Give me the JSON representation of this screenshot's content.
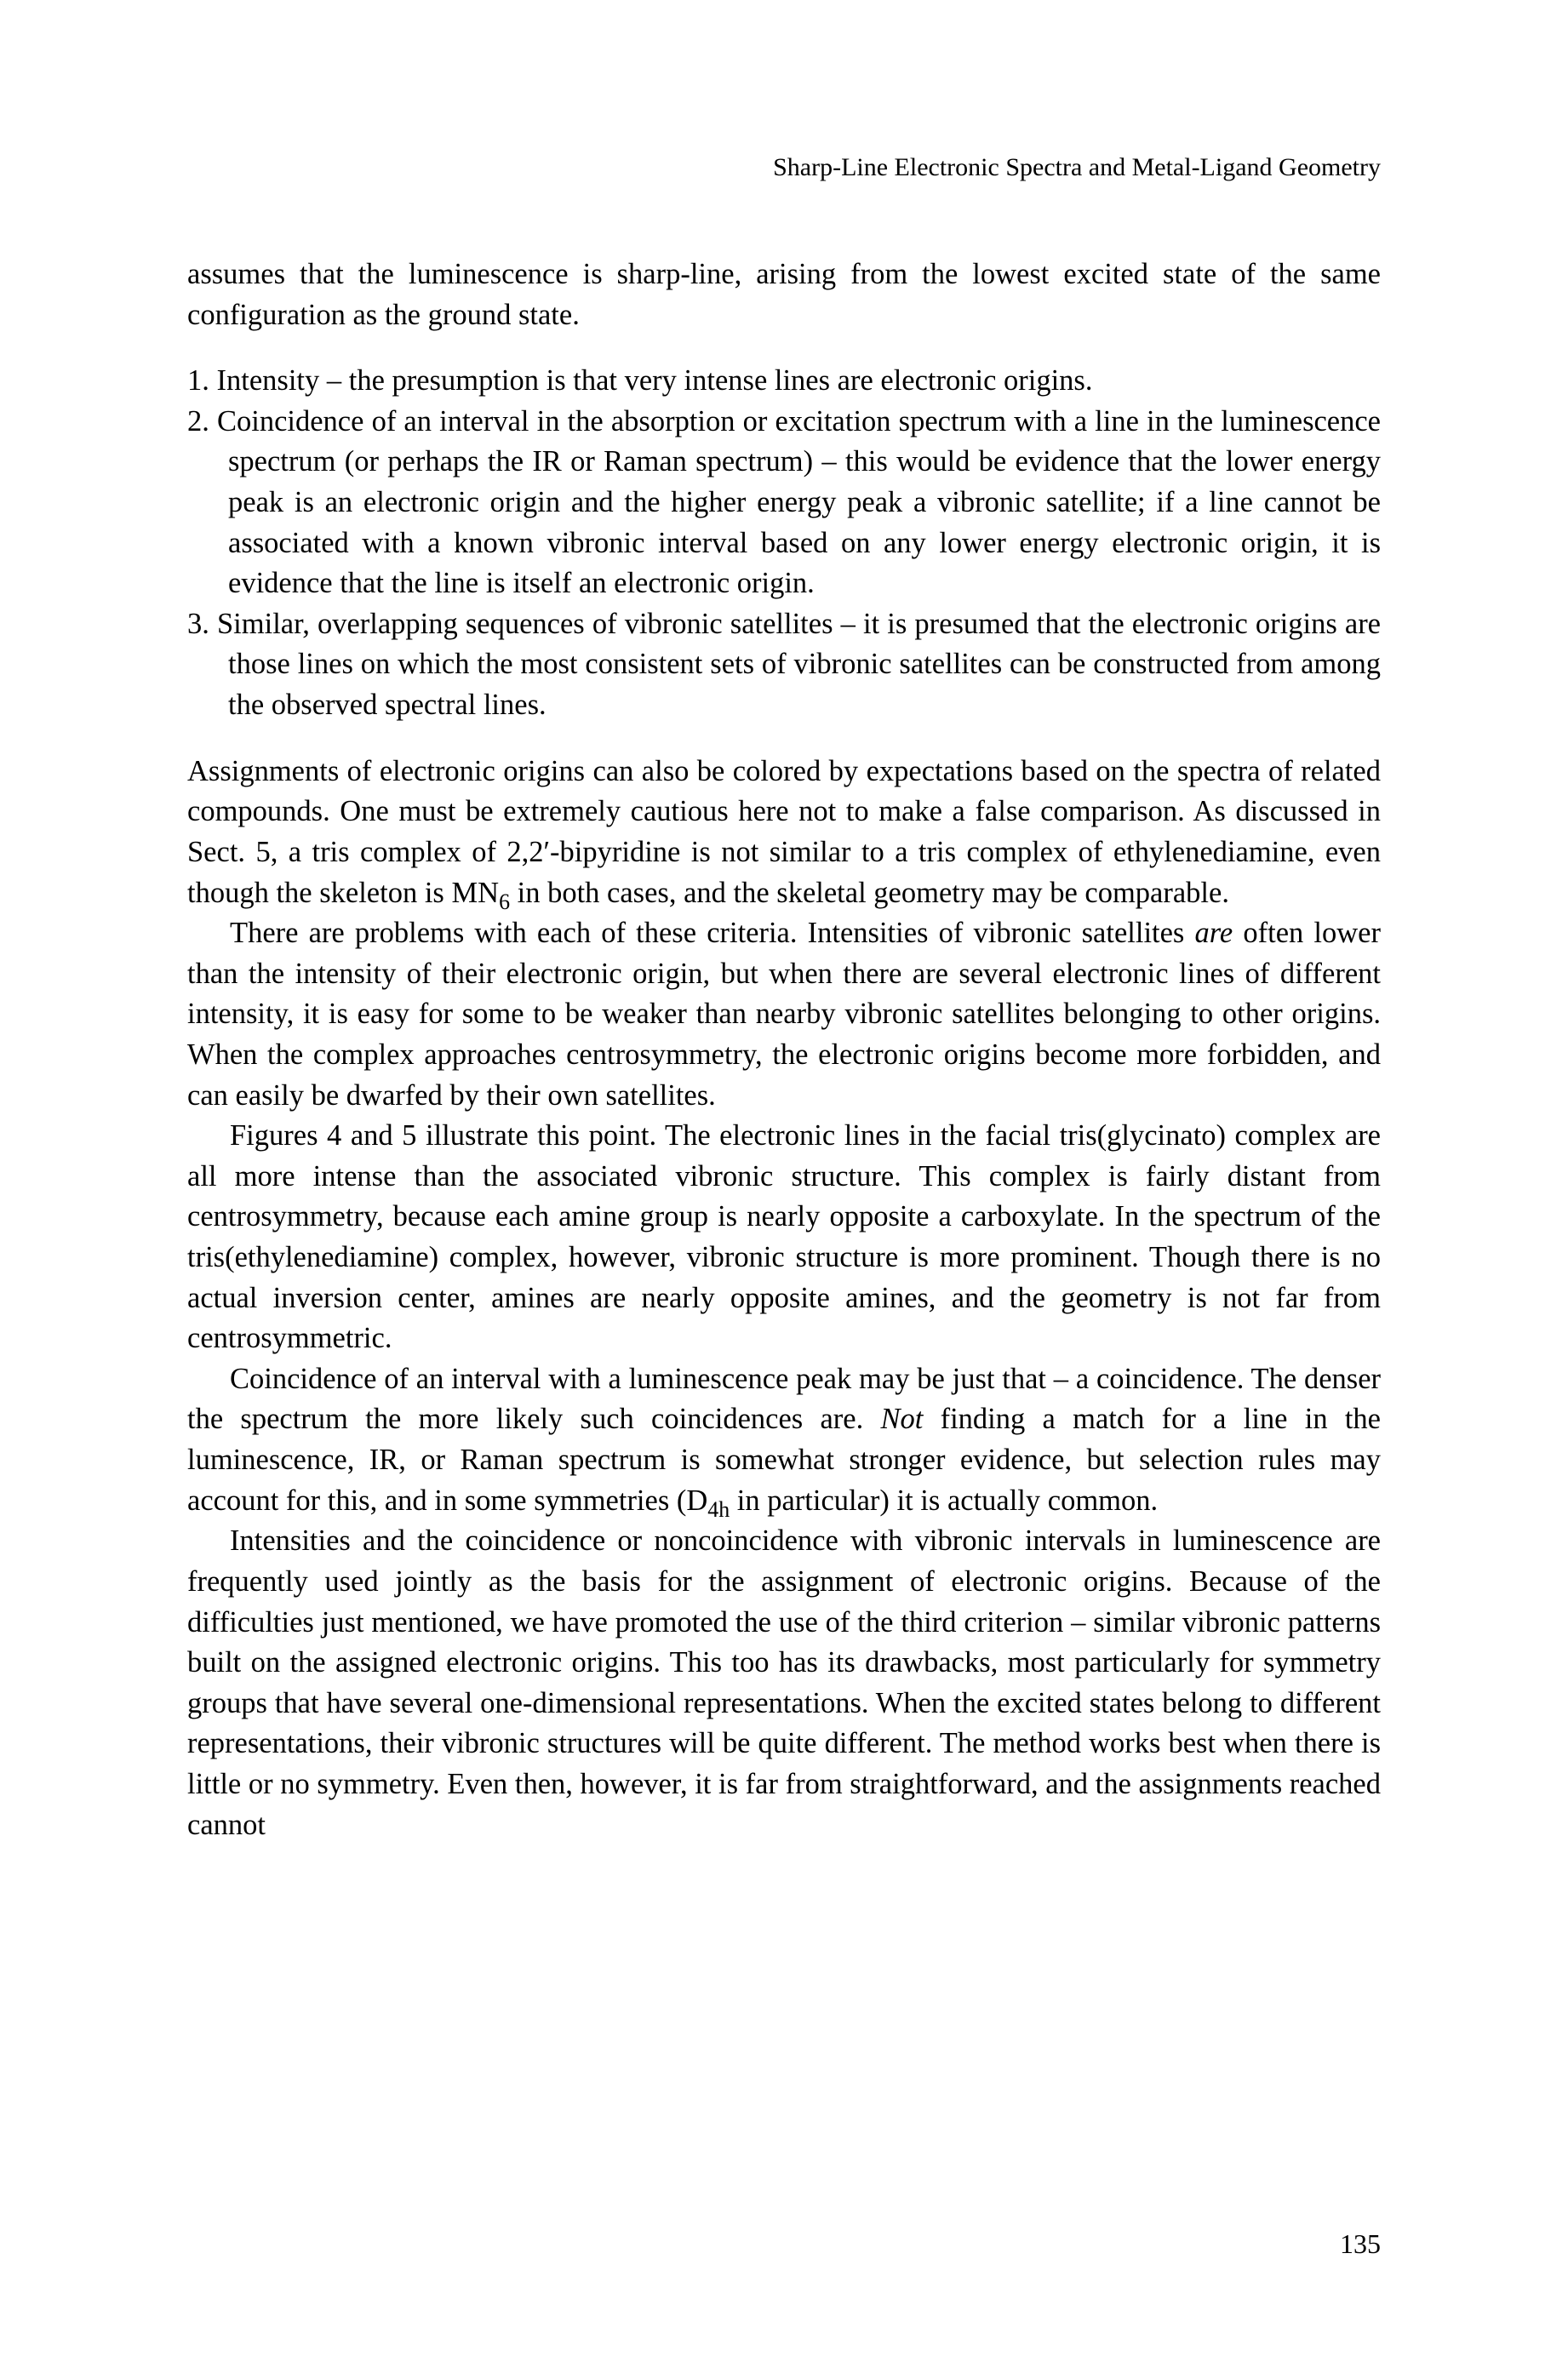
{
  "header": {
    "running_title": "Sharp-Line Electronic Spectra and Metal-Ligand Geometry"
  },
  "content": {
    "intro_para": "assumes that the luminescence is sharp-line, arising from the lowest excited state of the same configuration as the ground state.",
    "list": {
      "item1_num": "1.",
      "item1_text": " Intensity – the presumption is that very intense lines are electronic origins.",
      "item2_num": "2.",
      "item2_text": " Coincidence of an interval in the absorption or excitation spectrum with a line in the luminescence spectrum (or perhaps the IR or Raman spectrum) – this would be evidence that the lower energy peak is an electronic origin and the higher energy peak a vibronic satellite; if a line cannot be associated with a known vibronic interval based on any lower energy electronic origin, it is evidence that the line is itself an electronic origin.",
      "item3_num": "3.",
      "item3_text": " Similar, overlapping sequences of vibronic satellites – it is presumed that the electronic origins are those lines on which the most consistent sets of vibronic satellites can be constructed from among the observed spectral lines."
    },
    "para2_part1": "Assignments of electronic origins can also be colored by expectations based on the spectra of related compounds. One must be extremely cautious here not to make a false comparison. As discussed in Sect. 5, a tris complex of 2,2′-bipyridine is not similar to a tris complex of ethylenediamine, even though the skeleton is MN",
    "para2_sub": "6",
    "para2_part2": " in both cases, and the skeletal geometry may be comparable.",
    "para3_part1": "There are problems with each of these criteria. Intensities of vibronic satellites ",
    "para3_italic": "are",
    "para3_part2": " often lower than the intensity of their electronic origin, but when there are several electronic lines of different intensity, it is easy for some to be weaker than nearby vibronic satellites belonging to other origins. When the complex approaches centrosymmetry, the electronic origins become more forbidden, and can easily be dwarfed by their own satellites.",
    "para4": "Figures 4 and 5 illustrate this point. The electronic lines in the facial tris(glycinato) complex are all more intense than the associated vibronic structure. This complex is fairly distant from centrosymmetry, because each amine group is nearly opposite a carboxylate. In the spectrum of the tris(ethylenediamine) complex, however, vibronic structure is more prominent. Though there is no actual inversion center, amines are nearly opposite amines, and the geometry is not far from centrosymmetric.",
    "para5_part1": "Coincidence of an interval with a luminescence peak may be just that – a coincidence. The denser the spectrum the more likely such coincidences are. ",
    "para5_italic": "Not",
    "para5_part2": " finding a match for a line in the luminescence, IR, or Raman spectrum is somewhat stronger evidence, but selection rules may account for this, and in some symmetries (D",
    "para5_sub": "4h",
    "para5_part3": " in particular) it is actually common.",
    "para6": "Intensities and the coincidence or noncoincidence with vibronic intervals in luminescence are frequently used jointly as the basis for the assignment of electronic origins. Because of the difficulties just mentioned, we have promoted the use of the third criterion – similar vibronic patterns built on the assigned electronic origins. This too has its drawbacks, most particularly for symmetry groups that have several one-dimensional representations. When the excited states belong to different representations, their vibronic structures will be quite different. The method works best when there is little or no symmetry. Even then, however, it is far from straightforward, and the assignments reached cannot"
  },
  "page_number": "135"
}
